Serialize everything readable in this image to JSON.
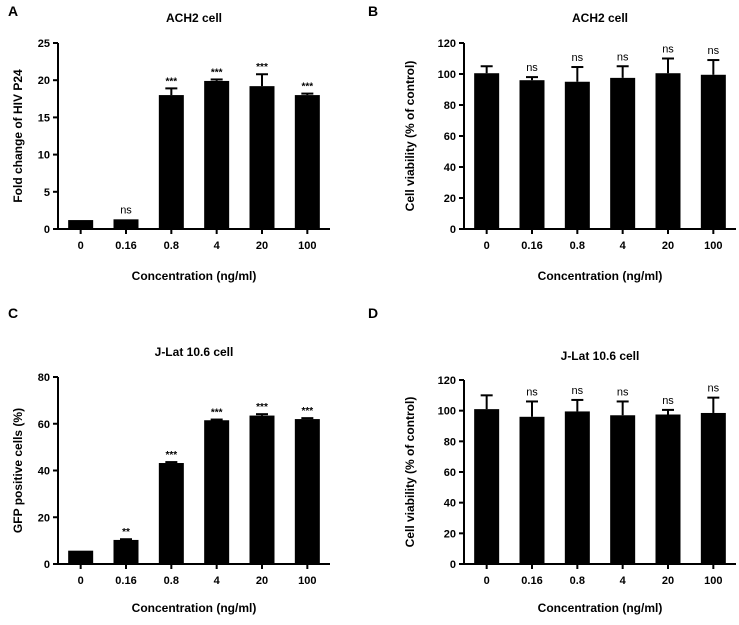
{
  "chart_data": [
    {
      "panel": "A",
      "type": "bar",
      "title": "ACH2 cell",
      "xlabel": "Concentration (ng/ml)",
      "ylabel": "Fold change of HIV P24",
      "categories": [
        "0",
        "0.16",
        "0.8",
        "4",
        "20",
        "100"
      ],
      "values": [
        1.2,
        1.3,
        18.0,
        19.9,
        19.2,
        18.0
      ],
      "errors": [
        0,
        0,
        0.9,
        0.2,
        1.6,
        0.2
      ],
      "significance": [
        "",
        "ns",
        "***",
        "***",
        "***",
        "***"
      ],
      "ylim": [
        0,
        25
      ],
      "yticks": [
        "0",
        "5",
        "10",
        "15",
        "20",
        "25"
      ]
    },
    {
      "panel": "B",
      "type": "bar",
      "title": "ACH2 cell",
      "xlabel": "Concentration (ng/ml)",
      "ylabel": "Cell viability (% of control)",
      "categories": [
        "0",
        "0.16",
        "0.8",
        "4",
        "20",
        "100"
      ],
      "values": [
        100.5,
        96,
        95,
        97.5,
        100.5,
        99.5
      ],
      "errors": [
        4.5,
        2,
        9.5,
        7.5,
        9.5,
        9.5
      ],
      "significance": [
        "",
        "ns",
        "ns",
        "ns",
        "ns",
        "ns"
      ],
      "ylim": [
        0,
        120
      ],
      "yticks": [
        "0",
        "20",
        "40",
        "60",
        "80",
        "100",
        "120"
      ]
    },
    {
      "panel": "C",
      "type": "bar",
      "title": "J-Lat 10.6 cell",
      "xlabel": "Concentration (ng/ml)",
      "ylabel": "GFP positive cells (%)",
      "categories": [
        "0",
        "0.16",
        "0.8",
        "4",
        "20",
        "100"
      ],
      "values": [
        5.7,
        10.3,
        43.2,
        61.5,
        63.5,
        62.0
      ],
      "errors": [
        0,
        0.3,
        0.4,
        0.3,
        0.6,
        0.4
      ],
      "significance": [
        "",
        "**",
        "***",
        "***",
        "***",
        "***"
      ],
      "ylim": [
        0,
        80
      ],
      "yticks": [
        "0",
        "20",
        "40",
        "60",
        "80"
      ]
    },
    {
      "panel": "D",
      "type": "bar",
      "title": "J-Lat 10.6 cell",
      "xlabel": "Concentration (ng/ml)",
      "ylabel": "Cell viability (% of control)",
      "categories": [
        "0",
        "0.16",
        "0.8",
        "4",
        "20",
        "100"
      ],
      "values": [
        101,
        96,
        99.5,
        97,
        97.5,
        98.5
      ],
      "errors": [
        9,
        10,
        7.5,
        9,
        3,
        10
      ],
      "significance": [
        "",
        "ns",
        "ns",
        "ns",
        "ns",
        "ns"
      ],
      "ylim": [
        0,
        120
      ],
      "yticks": [
        "0",
        "20",
        "40",
        "60",
        "80",
        "100",
        "120"
      ]
    }
  ],
  "colors": {
    "bar": "#000000",
    "axis": "#000000"
  }
}
